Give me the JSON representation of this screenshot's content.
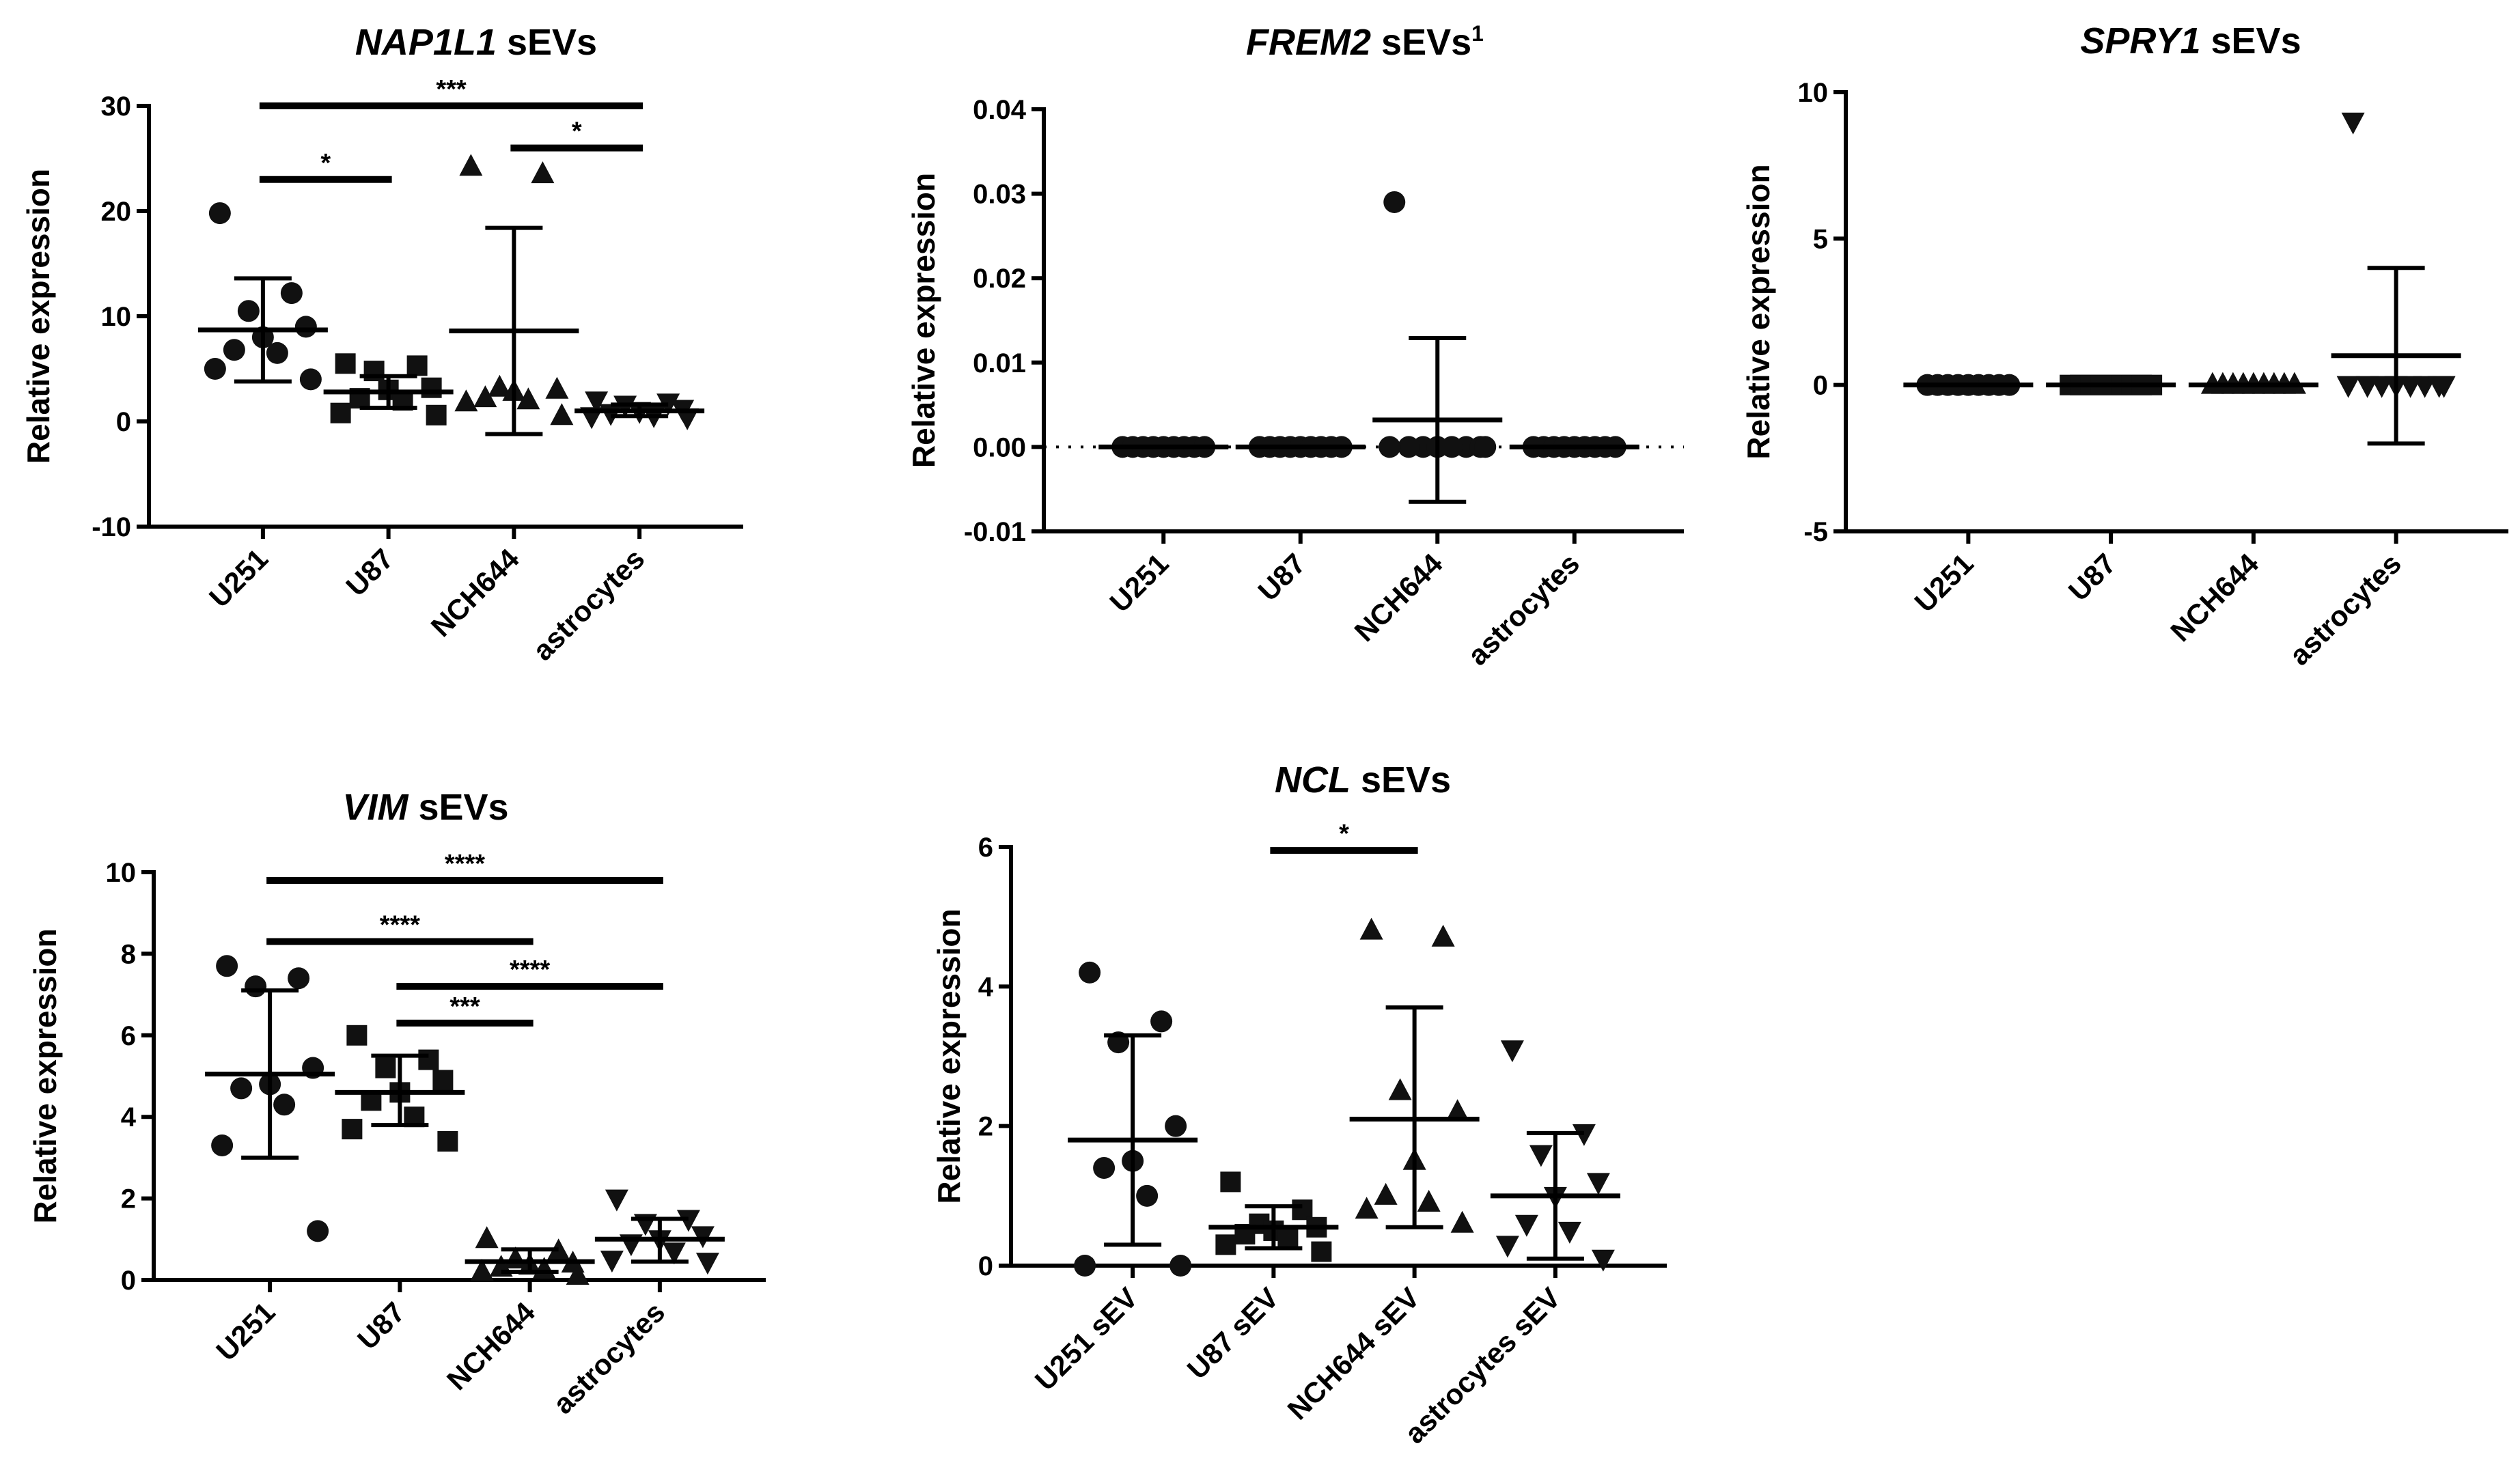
{
  "chart_data": [
    {
      "id": "nap1l1",
      "type": "scatter",
      "title_gene": "NAP1L1",
      "title_rest": " sEVs",
      "title_sup": "",
      "ylabel": "Relative expression",
      "ylim": [
        -10,
        30
      ],
      "yticks": [
        -10,
        0,
        10,
        20,
        30
      ],
      "ytick_labels": [
        "-10",
        "0",
        "10",
        "20",
        "30"
      ],
      "zero_line": false,
      "categories": [
        "U251",
        "U87",
        "NCH644",
        "astrocytes"
      ],
      "markers": [
        "circle",
        "square",
        "triangle-up",
        "triangle-down"
      ],
      "groups": [
        {
          "mean": 8.7,
          "sd_low": 3.8,
          "sd_high": 13.6,
          "points": [
            19.8,
            12.2,
            10.5,
            9.0,
            8.0,
            6.8,
            6.5,
            5.0,
            4.0
          ]
        },
        {
          "mean": 2.8,
          "sd_low": 1.3,
          "sd_high": 4.3,
          "points": [
            5.5,
            5.3,
            4.8,
            3.2,
            3.0,
            2.2,
            2.0,
            0.8,
            0.6
          ]
        },
        {
          "mean": 8.6,
          "sd_low": -1.2,
          "sd_high": 18.4,
          "points": [
            24.2,
            23.5,
            3.2,
            3.0,
            2.8,
            2.2,
            2.0,
            1.8,
            0.5
          ]
        },
        {
          "mean": 1.0,
          "sd_low": 0.5,
          "sd_high": 1.6,
          "points": [
            2.0,
            1.8,
            1.6,
            1.2,
            1.0,
            0.8,
            0.6,
            0.5,
            0.4
          ]
        }
      ],
      "significance": [
        {
          "from": 0,
          "to": 3,
          "label": "***",
          "level": 30
        },
        {
          "from": 0,
          "to": 1,
          "label": "*",
          "level": 23
        },
        {
          "from": 2,
          "to": 3,
          "label": "*",
          "level": 26
        }
      ]
    },
    {
      "id": "frem2",
      "type": "scatter",
      "title_gene": "FREM2",
      "title_rest": " sEVs",
      "title_sup": "1",
      "ylabel": "Relative expression",
      "ylim": [
        -0.01,
        0.04
      ],
      "yticks": [
        -0.01,
        0.0,
        0.01,
        0.02,
        0.03,
        0.04
      ],
      "ytick_labels": [
        "-0.01",
        "0.00",
        "0.01",
        "0.02",
        "0.03",
        "0.04"
      ],
      "zero_line": true,
      "categories": [
        "U251",
        "U87",
        "NCH644",
        "astrocytes"
      ],
      "markers": [
        "circle",
        "circle",
        "circle",
        "circle"
      ],
      "groups": [
        {
          "mean": 0,
          "sd_low": 0,
          "sd_high": 0,
          "points": [
            0,
            0,
            0,
            0,
            0,
            0,
            0,
            0,
            0
          ]
        },
        {
          "mean": 0,
          "sd_low": 0,
          "sd_high": 0,
          "points": [
            0,
            0,
            0,
            0,
            0,
            0,
            0,
            0,
            0
          ]
        },
        {
          "mean": 0.0032,
          "sd_low": -0.0065,
          "sd_high": 0.0129,
          "points": [
            0.029,
            0,
            0,
            0,
            0,
            0,
            0,
            0,
            0
          ]
        },
        {
          "mean": 0,
          "sd_low": 0,
          "sd_high": 0,
          "points": [
            0,
            0,
            0,
            0,
            0,
            0,
            0,
            0,
            0
          ]
        }
      ],
      "significance": []
    },
    {
      "id": "spry1",
      "type": "scatter",
      "title_gene": "SPRY1",
      "title_rest": " sEVs",
      "title_sup": "",
      "ylabel": "Relative expression",
      "ylim": [
        -5,
        10
      ],
      "yticks": [
        -5,
        0,
        5,
        10
      ],
      "ytick_labels": [
        "-5",
        "0",
        "5",
        "10"
      ],
      "zero_line": false,
      "categories": [
        "U251",
        "U87",
        "NCH644",
        "astrocytes"
      ],
      "markers": [
        "circle",
        "square",
        "triangle-up",
        "triangle-down"
      ],
      "groups": [
        {
          "mean": 0,
          "sd_low": 0,
          "sd_high": 0,
          "points": [
            0,
            0,
            0,
            0,
            0,
            0,
            0,
            0,
            0
          ]
        },
        {
          "mean": 0,
          "sd_low": 0,
          "sd_high": 0,
          "points": [
            0,
            0,
            0,
            0,
            0,
            0,
            0,
            0,
            0
          ]
        },
        {
          "mean": 0,
          "sd_low": 0,
          "sd_high": 0,
          "points": [
            0,
            0,
            0,
            0,
            0,
            0,
            0,
            0,
            0
          ]
        },
        {
          "mean": 1.0,
          "sd_low": -2.0,
          "sd_high": 4.0,
          "points": [
            9.0,
            0,
            0,
            0,
            0,
            0,
            0,
            0,
            0
          ]
        }
      ],
      "significance": []
    },
    {
      "id": "vim",
      "type": "scatter",
      "title_gene": "VIM",
      "title_rest": " sEVs",
      "title_sup": "",
      "ylabel": "Relative expression",
      "ylim": [
        0,
        10
      ],
      "yticks": [
        0,
        2,
        4,
        6,
        8,
        10
      ],
      "ytick_labels": [
        "0",
        "2",
        "4",
        "6",
        "8",
        "10"
      ],
      "zero_line": false,
      "categories": [
        "U251",
        "U87",
        "NCH644",
        "astrocytes"
      ],
      "markers": [
        "circle",
        "square",
        "triangle-up",
        "triangle-down"
      ],
      "groups": [
        {
          "mean": 5.05,
          "sd_low": 3.0,
          "sd_high": 7.1,
          "points": [
            7.7,
            7.4,
            7.2,
            5.2,
            4.8,
            4.7,
            4.3,
            3.3,
            1.2
          ]
        },
        {
          "mean": 4.6,
          "sd_low": 3.8,
          "sd_high": 5.5,
          "points": [
            6.0,
            5.4,
            5.2,
            4.9,
            4.6,
            4.4,
            4.0,
            3.7,
            3.4
          ]
        },
        {
          "mean": 0.45,
          "sd_low": 0.2,
          "sd_high": 0.75,
          "points": [
            1.0,
            0.7,
            0.5,
            0.4,
            0.35,
            0.3,
            0.25,
            0.2,
            0.1
          ]
        },
        {
          "mean": 1.0,
          "sd_low": 0.45,
          "sd_high": 1.5,
          "points": [
            2.0,
            1.5,
            1.4,
            1.1,
            1.0,
            0.9,
            0.7,
            0.5,
            0.45
          ]
        }
      ],
      "significance": [
        {
          "from": 0,
          "to": 3,
          "label": "****",
          "level": 9.8
        },
        {
          "from": 0,
          "to": 2,
          "label": "****",
          "level": 8.3
        },
        {
          "from": 1,
          "to": 3,
          "label": "****",
          "level": 7.2
        },
        {
          "from": 1,
          "to": 2,
          "label": "***",
          "level": 6.3
        }
      ]
    },
    {
      "id": "ncl",
      "type": "scatter",
      "title_gene": "NCL",
      "title_rest": " sEVs",
      "title_sup": "",
      "ylabel": "Relative expression",
      "ylim": [
        0,
        6
      ],
      "yticks": [
        0,
        2,
        4,
        6
      ],
      "ytick_labels": [
        "0",
        "2",
        "4",
        "6"
      ],
      "zero_line": false,
      "categories": [
        "U251 sEV",
        "U87 sEV",
        "NCH644 sEV",
        "astrocytes sEV"
      ],
      "markers": [
        "circle",
        "square",
        "triangle-up",
        "triangle-down"
      ],
      "groups": [
        {
          "mean": 1.8,
          "sd_low": 0.3,
          "sd_high": 3.3,
          "points": [
            4.2,
            3.5,
            3.2,
            2.0,
            1.5,
            1.4,
            1.0,
            0.0,
            0.0
          ]
        },
        {
          "mean": 0.55,
          "sd_low": 0.25,
          "sd_high": 0.85,
          "points": [
            1.2,
            0.8,
            0.6,
            0.55,
            0.5,
            0.45,
            0.4,
            0.3,
            0.2
          ]
        },
        {
          "mean": 2.1,
          "sd_low": 0.55,
          "sd_high": 3.7,
          "points": [
            4.8,
            4.7,
            2.5,
            2.2,
            1.5,
            1.0,
            0.9,
            0.8,
            0.6
          ]
        },
        {
          "mean": 1.0,
          "sd_low": 0.1,
          "sd_high": 1.9,
          "points": [
            3.1,
            1.9,
            1.6,
            1.2,
            1.0,
            0.6,
            0.5,
            0.3,
            0.1
          ]
        }
      ],
      "significance": [
        {
          "from": 1,
          "to": 2,
          "label": "*",
          "level": 5.95
        }
      ]
    }
  ]
}
